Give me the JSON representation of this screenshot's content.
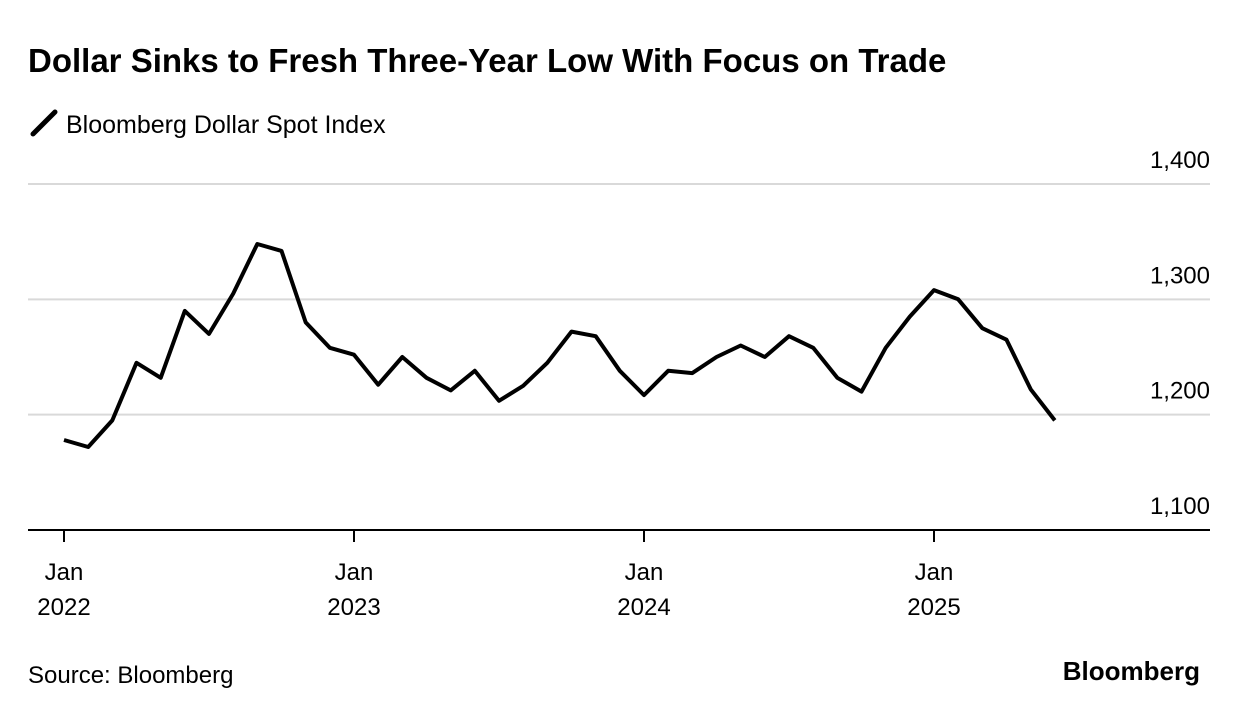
{
  "chart_data": {
    "type": "line",
    "title": "Dollar Sinks to Fresh Three-Year Low With Focus on Trade",
    "source": "Source: Bloomberg",
    "brand": "Bloomberg",
    "x": [
      "2022-01",
      "2022-02",
      "2022-03",
      "2022-04",
      "2022-05",
      "2022-06",
      "2022-07",
      "2022-08",
      "2022-09",
      "2022-10",
      "2022-11",
      "2022-12",
      "2023-01",
      "2023-02",
      "2023-03",
      "2023-04",
      "2023-05",
      "2023-06",
      "2023-07",
      "2023-08",
      "2023-09",
      "2023-10",
      "2023-11",
      "2023-12",
      "2024-01",
      "2024-02",
      "2024-03",
      "2024-04",
      "2024-05",
      "2024-06",
      "2024-07",
      "2024-08",
      "2024-09",
      "2024-10",
      "2024-11",
      "2024-12",
      "2025-01",
      "2025-02",
      "2025-03",
      "2025-04",
      "2025-05",
      "2025-06"
    ],
    "series": [
      {
        "name": "Bloomberg Dollar Spot Index",
        "color": "#000000",
        "values": [
          1178,
          1172,
          1195,
          1245,
          1232,
          1290,
          1270,
          1305,
          1348,
          1342,
          1280,
          1258,
          1252,
          1226,
          1250,
          1232,
          1221,
          1238,
          1212,
          1225,
          1245,
          1272,
          1268,
          1238,
          1217,
          1238,
          1236,
          1250,
          1260,
          1250,
          1268,
          1258,
          1232,
          1220,
          1258,
          1285,
          1308,
          1300,
          1275,
          1265,
          1222,
          1195
        ]
      }
    ],
    "ylim": [
      1100,
      1400
    ],
    "yticks": [
      {
        "value": 1100,
        "label": "1,100"
      },
      {
        "value": 1200,
        "label": "1,200"
      },
      {
        "value": 1300,
        "label": "1,300"
      },
      {
        "value": 1400,
        "label": "1,400"
      }
    ],
    "xticks": [
      {
        "value": "2022-01",
        "label": [
          "Jan",
          "2022"
        ]
      },
      {
        "value": "2023-01",
        "label": [
          "Jan",
          "2023"
        ]
      },
      {
        "value": "2024-01",
        "label": [
          "Jan",
          "2024"
        ]
      },
      {
        "value": "2025-01",
        "label": [
          "Jan",
          "2025"
        ]
      }
    ],
    "grid": true
  }
}
